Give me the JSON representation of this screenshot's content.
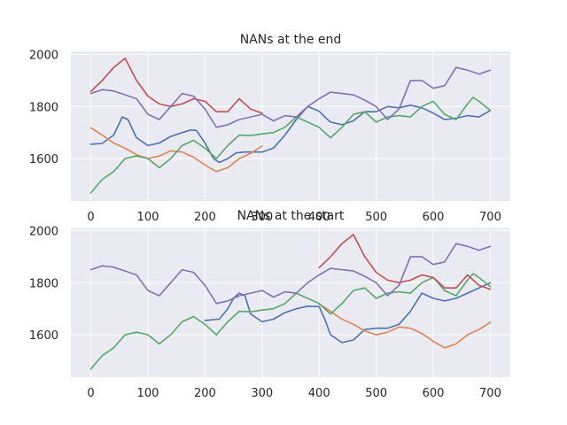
{
  "chart_data": [
    {
      "type": "line",
      "title": "NANs at the end",
      "xlabel": "",
      "ylabel": "",
      "xlim": [
        -35,
        735
      ],
      "ylim": [
        1437,
        2012
      ],
      "xticks": [
        0,
        100,
        200,
        300,
        400,
        500,
        600,
        700
      ],
      "yticks": [
        1600,
        1800,
        2000
      ],
      "grid": true,
      "legend": "none",
      "series": [
        {
          "color": "#4c72b0",
          "x": [
            0,
            20,
            40,
            55,
            65,
            80,
            100,
            120,
            140,
            160,
            175,
            185,
            200,
            215,
            225,
            240,
            255,
            270,
            285,
            300,
            320,
            340,
            360,
            380,
            400,
            410,
            420,
            440,
            460,
            480,
            500,
            520,
            540,
            560,
            580,
            600,
            620,
            640,
            660,
            680,
            700
          ],
          "y": [
            1655,
            1658,
            1690,
            1760,
            1750,
            1680,
            1650,
            1660,
            1685,
            1700,
            1710,
            1708,
            1660,
            1600,
            1585,
            1600,
            1622,
            1625,
            1625,
            1625,
            1640,
            1690,
            1750,
            1800,
            1782,
            1760,
            1740,
            1730,
            1745,
            1780,
            1780,
            1800,
            1795,
            1805,
            1795,
            1775,
            1750,
            1755,
            1765,
            1760,
            1785
          ]
        },
        {
          "color": "#dd8452",
          "x": [
            0,
            20,
            40,
            60,
            80,
            100,
            120,
            140,
            160,
            180,
            200,
            220,
            240,
            260,
            280,
            300
          ],
          "y": [
            1718,
            1690,
            1660,
            1640,
            1615,
            1600,
            1610,
            1630,
            1625,
            1605,
            1575,
            1550,
            1565,
            1600,
            1620,
            1648
          ]
        },
        {
          "color": "#55a868",
          "x": [
            0,
            20,
            40,
            60,
            80,
            100,
            120,
            140,
            160,
            180,
            200,
            220,
            240,
            260,
            280,
            300,
            320,
            340,
            360,
            380,
            400,
            420,
            440,
            460,
            480,
            500,
            520,
            540,
            560,
            580,
            600,
            620,
            640,
            660,
            670,
            680,
            700
          ],
          "y": [
            1468,
            1520,
            1550,
            1600,
            1610,
            1600,
            1565,
            1600,
            1650,
            1670,
            1640,
            1600,
            1650,
            1690,
            1688,
            1695,
            1700,
            1720,
            1760,
            1740,
            1720,
            1680,
            1720,
            1770,
            1780,
            1740,
            1760,
            1765,
            1760,
            1800,
            1820,
            1770,
            1750,
            1810,
            1835,
            1820,
            1785
          ]
        },
        {
          "color": "#c44e52",
          "x": [
            0,
            20,
            40,
            60,
            80,
            100,
            120,
            140,
            160,
            180,
            200,
            220,
            240,
            260,
            280,
            300
          ],
          "y": [
            1858,
            1900,
            1950,
            1985,
            1900,
            1840,
            1810,
            1800,
            1810,
            1830,
            1820,
            1780,
            1780,
            1830,
            1790,
            1775
          ]
        },
        {
          "color": "#8172b3",
          "x": [
            0,
            20,
            40,
            60,
            80,
            100,
            120,
            140,
            160,
            180,
            200,
            220,
            240,
            260,
            280,
            300,
            320,
            340,
            360,
            380,
            400,
            420,
            440,
            460,
            480,
            500,
            520,
            540,
            560,
            580,
            600,
            620,
            640,
            660,
            680,
            700
          ],
          "y": [
            1850,
            1865,
            1860,
            1845,
            1830,
            1770,
            1750,
            1800,
            1850,
            1840,
            1790,
            1720,
            1730,
            1750,
            1760,
            1770,
            1745,
            1765,
            1760,
            1800,
            1830,
            1855,
            1850,
            1845,
            1825,
            1800,
            1750,
            1790,
            1900,
            1900,
            1870,
            1880,
            1950,
            1940,
            1925,
            1940
          ]
        }
      ]
    },
    {
      "type": "line",
      "title": "NANs at the start",
      "xlabel": "",
      "ylabel": "",
      "xlim": [
        -35,
        735
      ],
      "ylim": [
        1437,
        2012
      ],
      "xticks": [
        0,
        100,
        200,
        300,
        400,
        500,
        600,
        700
      ],
      "yticks": [
        1600,
        1800,
        2000
      ],
      "grid": true,
      "legend": "none",
      "series": [
        {
          "color": "#4c72b0",
          "x": [
            200,
            215,
            225,
            240,
            250,
            260,
            270,
            280,
            300,
            320,
            340,
            360,
            380,
            400,
            410,
            420,
            440,
            460,
            480,
            500,
            520,
            540,
            560,
            580,
            600,
            620,
            640,
            660,
            680,
            700
          ],
          "y": [
            1655,
            1658,
            1660,
            1700,
            1740,
            1760,
            1750,
            1680,
            1650,
            1660,
            1685,
            1700,
            1710,
            1708,
            1660,
            1600,
            1570,
            1580,
            1620,
            1625,
            1625,
            1640,
            1690,
            1760,
            1740,
            1730,
            1740,
            1760,
            1780,
            1800
          ]
        },
        {
          "color": "#dd8452",
          "x": [
            400,
            420,
            440,
            460,
            480,
            500,
            520,
            540,
            560,
            580,
            600,
            620,
            640,
            660,
            680,
            700
          ],
          "y": [
            1718,
            1690,
            1660,
            1640,
            1615,
            1600,
            1610,
            1630,
            1625,
            1605,
            1575,
            1550,
            1565,
            1600,
            1620,
            1648
          ]
        },
        {
          "color": "#55a868",
          "x": [
            0,
            20,
            40,
            60,
            80,
            100,
            120,
            140,
            160,
            180,
            200,
            220,
            240,
            260,
            280,
            300,
            320,
            340,
            360,
            380,
            400,
            420,
            440,
            460,
            480,
            500,
            520,
            540,
            560,
            580,
            600,
            620,
            640,
            660,
            670,
            680,
            700
          ],
          "y": [
            1468,
            1520,
            1550,
            1600,
            1610,
            1600,
            1565,
            1600,
            1650,
            1670,
            1640,
            1600,
            1650,
            1690,
            1688,
            1695,
            1700,
            1720,
            1760,
            1740,
            1720,
            1680,
            1720,
            1770,
            1780,
            1740,
            1760,
            1765,
            1760,
            1800,
            1820,
            1770,
            1750,
            1810,
            1835,
            1820,
            1785
          ]
        },
        {
          "color": "#c44e52",
          "x": [
            400,
            420,
            440,
            460,
            480,
            500,
            520,
            540,
            560,
            580,
            600,
            620,
            640,
            660,
            680,
            700
          ],
          "y": [
            1858,
            1900,
            1950,
            1985,
            1900,
            1840,
            1810,
            1800,
            1810,
            1830,
            1820,
            1780,
            1780,
            1830,
            1790,
            1775
          ]
        },
        {
          "color": "#8172b3",
          "x": [
            0,
            20,
            40,
            60,
            80,
            100,
            120,
            140,
            160,
            180,
            200,
            220,
            240,
            260,
            280,
            300,
            320,
            340,
            360,
            380,
            400,
            420,
            440,
            460,
            480,
            500,
            520,
            540,
            560,
            580,
            600,
            620,
            640,
            660,
            680,
            700
          ],
          "y": [
            1850,
            1865,
            1860,
            1845,
            1830,
            1770,
            1750,
            1800,
            1850,
            1840,
            1790,
            1720,
            1730,
            1750,
            1760,
            1770,
            1745,
            1765,
            1760,
            1800,
            1830,
            1855,
            1850,
            1845,
            1825,
            1800,
            1750,
            1790,
            1900,
            1900,
            1870,
            1880,
            1950,
            1940,
            1925,
            1940
          ]
        }
      ]
    }
  ]
}
